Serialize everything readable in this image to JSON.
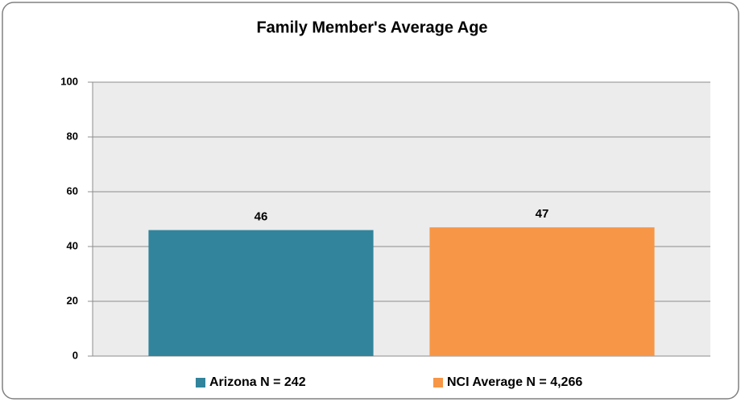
{
  "chart_data": {
    "type": "bar",
    "title": "Family Member's Average Age",
    "categories": [
      null
    ],
    "series": [
      {
        "name": "Arizona N = 242",
        "color": "#31849b",
        "values": [
          46
        ]
      },
      {
        "name": "NCI Average N = 4,266",
        "color": "#f79646",
        "values": [
          47
        ]
      }
    ],
    "ylim": [
      0,
      100
    ],
    "yticks": [
      0,
      20,
      40,
      60,
      80,
      100
    ],
    "grid": true,
    "legend": "bottom"
  }
}
